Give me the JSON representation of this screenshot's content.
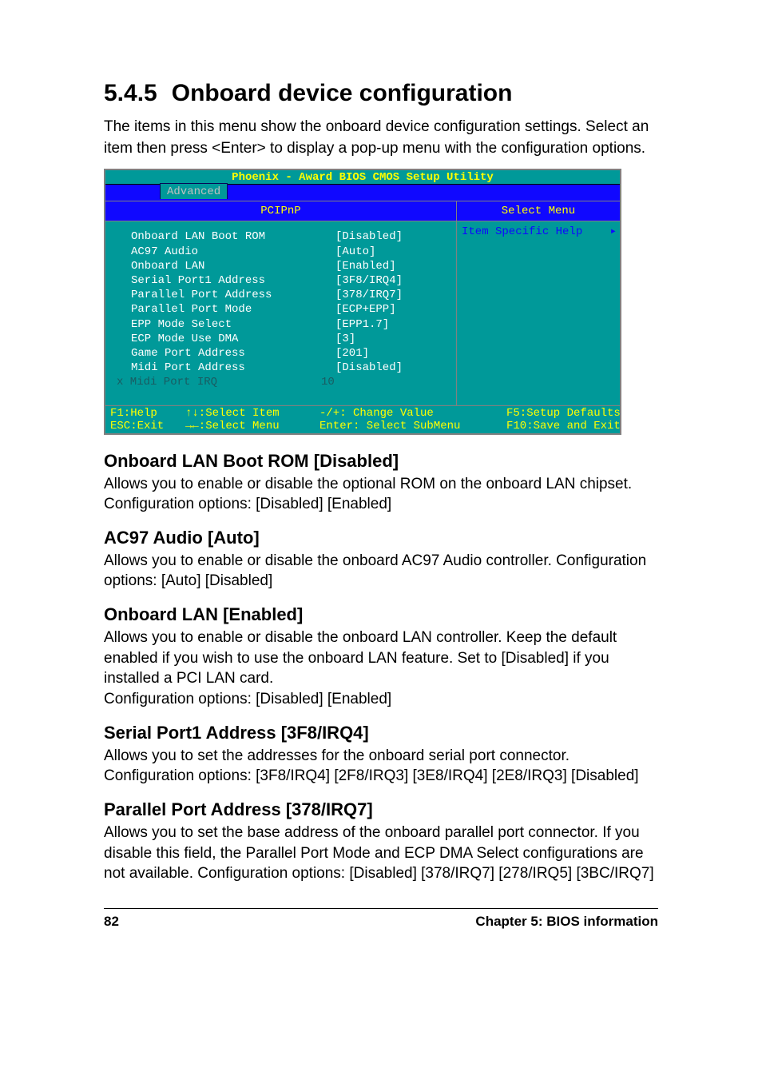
{
  "section": {
    "number": "5.4.5",
    "title": "Onboard device configuration",
    "intro": "The items in this menu show the onboard device configuration settings. Select an item then press <Enter> to display a pop-up menu with the configuration options."
  },
  "bios": {
    "title": "Phoenix - Award BIOS CMOS Setup Utility",
    "tab": "Advanced",
    "header_left": "PCIPnP",
    "header_right": "Select Menu",
    "help_label": "Item Specific Help",
    "rows": [
      {
        "label": "Onboard LAN Boot ROM",
        "value": "[Disabled]",
        "disabled": false
      },
      {
        "label": "AC97 Audio",
        "value": "[Auto]",
        "disabled": false
      },
      {
        "label": "Onboard LAN",
        "value": "[Enabled]",
        "disabled": false
      },
      {
        "label": "Serial Port1 Address",
        "value": "[3F8/IRQ4]",
        "disabled": false
      },
      {
        "label": "Parallel Port Address",
        "value": "[378/IRQ7]",
        "disabled": false
      },
      {
        "label": "Parallel Port Mode",
        "value": "[ECP+EPP]",
        "disabled": false
      },
      {
        "label": "EPP Mode Select",
        "value": "[EPP1.7]",
        "disabled": false
      },
      {
        "label": "ECP Mode Use DMA",
        "value": "[3]",
        "disabled": false
      },
      {
        "label": "Game Port Address",
        "value": "[201]",
        "disabled": false
      },
      {
        "label": "Midi Port Address",
        "value": "[Disabled]",
        "disabled": false
      },
      {
        "label": "x Midi Port IRQ",
        "value": "10",
        "disabled": true
      }
    ],
    "footer": {
      "col1a": "F1:Help",
      "col1b": "ESC:Exit",
      "col2a": "↑↓:Select Item",
      "col2b": "→←:Select Menu",
      "col3a": "-/+: Change Value",
      "col3b": "Enter: Select SubMenu",
      "col4a": "F5:Setup Defaults",
      "col4b": "F10:Save and Exit"
    },
    "colors": {
      "teal": "#009999",
      "blue": "#1008ff",
      "yellow": "#ffff00",
      "dim": "#195c62",
      "border": "#808080"
    }
  },
  "subsections": [
    {
      "heading": "Onboard LAN Boot ROM [Disabled]",
      "text": "Allows you to enable or disable the optional ROM on the onboard LAN chipset. Configuration options: [Disabled] [Enabled]"
    },
    {
      "heading": "AC97 Audio [Auto]",
      "text": "Allows you to enable or disable the onboard AC97 Audio controller. Configuration options: [Auto] [Disabled]"
    },
    {
      "heading": "Onboard LAN [Enabled]",
      "text": "Allows you to enable or disable the onboard LAN controller. Keep the default enabled if you wish to use the onboard LAN feature. Set to [Disabled] if you installed a PCI LAN card.\nConfiguration options: [Disabled] [Enabled]"
    },
    {
      "heading": "Serial Port1 Address [3F8/IRQ4]",
      "text": "Allows you to set the addresses for the onboard serial port connector. Configuration options: [3F8/IRQ4] [2F8/IRQ3] [3E8/IRQ4] [2E8/IRQ3] [Disabled]"
    },
    {
      "heading": "Parallel Port Address [378/IRQ7]",
      "text": "Allows you to set the base address of the onboard parallel port connector. If you disable this field, the Parallel Port Mode and ECP DMA Select configurations are not available. Configuration options: [Disabled] [378/IRQ7] [278/IRQ5] [3BC/IRQ7]"
    }
  ],
  "footer": {
    "page": "82",
    "chapter": "Chapter 5:  BIOS information"
  }
}
